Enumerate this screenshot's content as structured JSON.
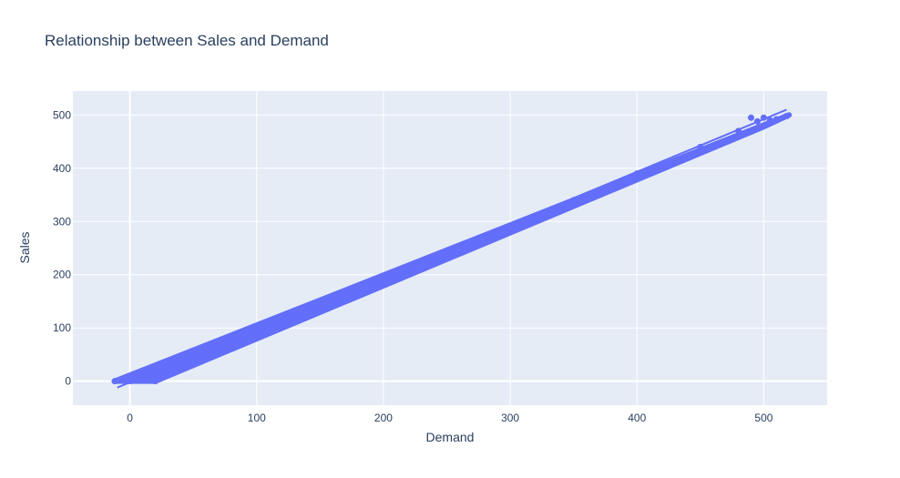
{
  "chart_data": {
    "type": "scatter",
    "title": "Relationship between Sales and Demand",
    "xlabel": "Demand",
    "ylabel": "Sales",
    "xlim": [
      -45,
      550
    ],
    "ylim": [
      -45,
      545
    ],
    "x_ticks": [
      0,
      100,
      200,
      300,
      400,
      500
    ],
    "y_ticks": [
      0,
      100,
      200,
      300,
      400,
      500
    ],
    "grid": true,
    "colors": {
      "marker": "#636efa",
      "plot_bg": "#e5ecf6",
      "grid": "#ffffff",
      "text": "#2a3f5f"
    },
    "series": [
      {
        "type": "scatter",
        "band": {
          "upper": [
            [
              -12,
              0
            ],
            [
              520,
              500
            ]
          ],
          "lower": [
            [
              -12,
              0
            ],
            [
              20,
              0
            ],
            [
              500,
              478
            ]
          ]
        },
        "x": [
          -12,
          0,
          10,
          20,
          50,
          100,
          150,
          200,
          250,
          300,
          350,
          400,
          450,
          480,
          490,
          495,
          500,
          505,
          510,
          518
        ],
        "y": [
          0,
          0,
          5,
          0,
          35,
          90,
          140,
          190,
          240,
          290,
          340,
          390,
          440,
          470,
          495,
          488,
          495,
          490,
          492,
          498
        ]
      },
      {
        "type": "line",
        "x": [
          -10,
          518
        ],
        "y": [
          -12,
          510
        ]
      }
    ]
  }
}
